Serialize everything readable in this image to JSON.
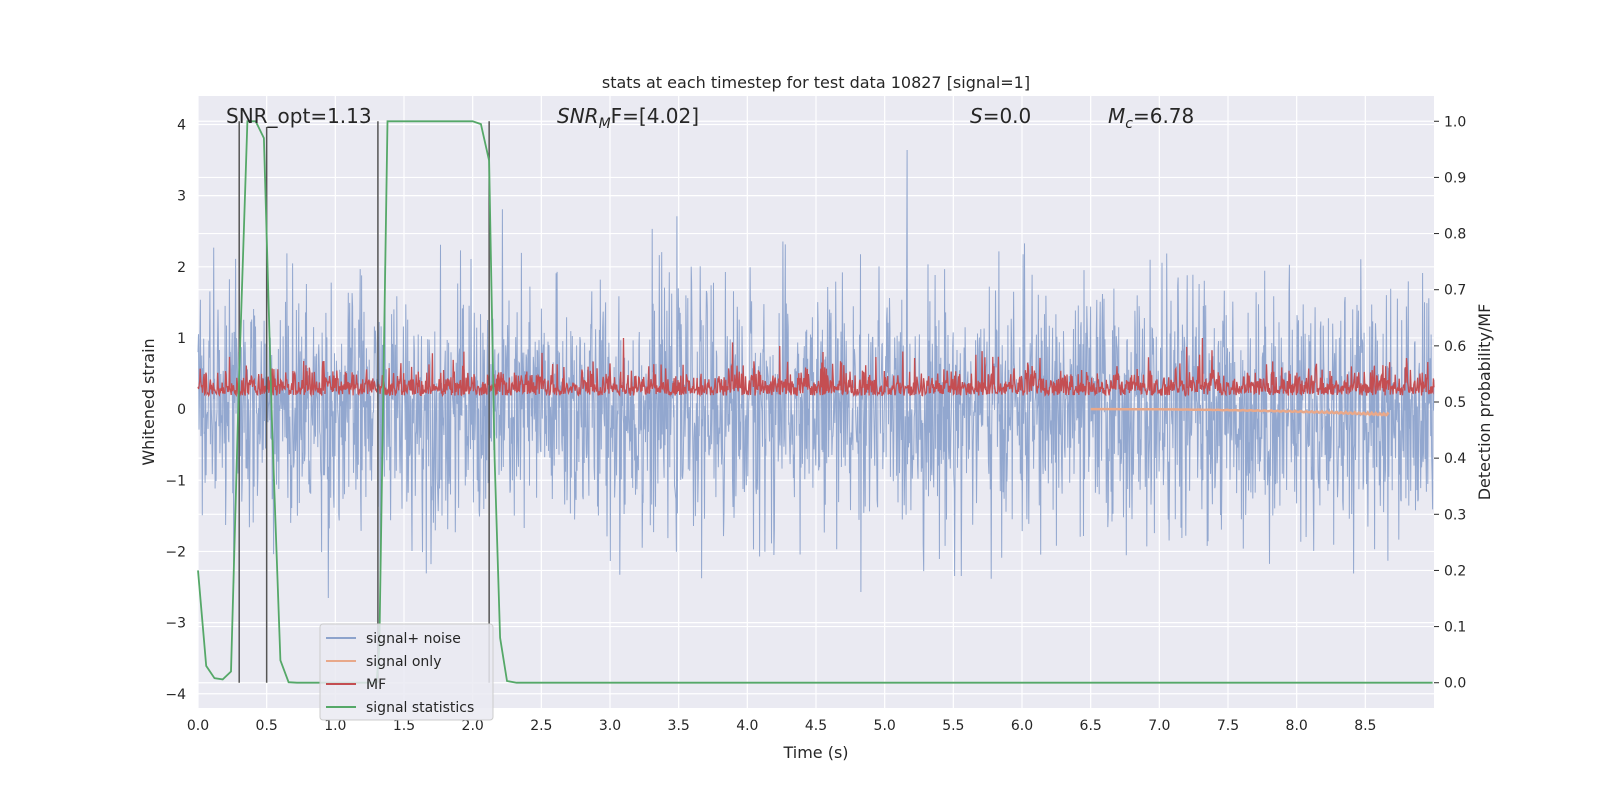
{
  "chart_data": {
    "type": "line",
    "title": "stats at each timestep for test data 10827 [signal=1]",
    "xlabel": "Time (s)",
    "ylabel_left": "Whitened strain",
    "ylabel_right": "Detection probability/MF",
    "xlim": [
      0.0,
      9.0
    ],
    "ylim_left": [
      -4.2,
      4.4
    ],
    "ylim_right": [
      -0.045,
      1.045
    ],
    "x_ticks": [
      "0.0",
      "0.5",
      "1.0",
      "1.5",
      "2.0",
      "2.5",
      "3.0",
      "3.5",
      "4.0",
      "4.5",
      "5.0",
      "5.5",
      "6.0",
      "6.5",
      "7.0",
      "7.5",
      "8.0",
      "8.5"
    ],
    "x_tick_values": [
      0.0,
      0.5,
      1.0,
      1.5,
      2.0,
      2.5,
      3.0,
      3.5,
      4.0,
      4.5,
      5.0,
      5.5,
      6.0,
      6.5,
      7.0,
      7.5,
      8.0,
      8.5
    ],
    "y_left_ticks": [
      "−4",
      "−3",
      "−2",
      "−1",
      "0",
      "1",
      "2",
      "3",
      "4"
    ],
    "y_left_tick_values": [
      -4,
      -3,
      -2,
      -1,
      0,
      1,
      2,
      3,
      4
    ],
    "y_right_ticks": [
      "0.0",
      "0.1",
      "0.2",
      "0.3",
      "0.4",
      "0.5",
      "0.6",
      "0.7",
      "0.8",
      "0.9",
      "1.0"
    ],
    "y_right_tick_values": [
      0.0,
      0.1,
      0.2,
      0.3,
      0.4,
      0.5,
      0.6,
      0.7,
      0.8,
      0.9,
      1.0
    ],
    "grid": true,
    "legend_placement": "lower-left",
    "annotations": [
      {
        "id": "snr-opt",
        "text": "SNR_opt=1.13"
      },
      {
        "id": "snr-mf",
        "text": "SNR",
        "sub": "M",
        "rest": "F=[4.02]"
      },
      {
        "id": "s-val",
        "text": "S",
        "rest": "=0.0"
      },
      {
        "id": "mc-val",
        "text": "M",
        "sub": "c",
        "rest": "=6.78"
      }
    ],
    "series": [
      {
        "name": "signal+ noise",
        "color": "#8da3cc",
        "axis": "left",
        "kind": "noise",
        "sigma": 0.85,
        "range": [
          0.0,
          9.0
        ]
      },
      {
        "name": "signal only",
        "color": "#e8a88a",
        "axis": "left",
        "kind": "chirp",
        "range": [
          6.5,
          8.67
        ],
        "min": -0.09
      },
      {
        "name": "MF",
        "color": "#c44e52",
        "axis": "left",
        "kind": "mf",
        "mean": 0.25,
        "range": [
          0.0,
          9.0
        ]
      },
      {
        "name": "signal statistics",
        "color": "#55a868",
        "axis": "right",
        "x": [
          0.0,
          0.06,
          0.12,
          0.18,
          0.24,
          0.3,
          0.36,
          0.42,
          0.48,
          0.54,
          0.6,
          0.66,
          0.72,
          0.8,
          1.0,
          1.2,
          1.3,
          1.32,
          1.38,
          1.44,
          1.6,
          1.8,
          2.0,
          2.06,
          2.12,
          2.16,
          2.2,
          2.25,
          2.32,
          2.5,
          3.0,
          4.0,
          5.0,
          6.0,
          7.0,
          8.0,
          8.99
        ],
        "y": [
          0.2,
          0.03,
          0.008,
          0.006,
          0.02,
          0.55,
          1.0,
          1.0,
          0.97,
          0.45,
          0.04,
          0.001,
          0.0,
          0.0,
          0.0,
          0.0,
          0.0,
          0.06,
          1.0,
          1.0,
          1.0,
          1.0,
          1.0,
          0.995,
          0.93,
          0.4,
          0.08,
          0.003,
          0.0,
          0.0,
          0.0,
          0.0,
          0.0,
          0.0,
          0.0,
          0.0,
          0.0
        ]
      }
    ],
    "vertical_markers": [
      {
        "x": 0.3,
        "y_top": 1.0
      },
      {
        "x": 0.5,
        "y_top": 0.99
      },
      {
        "x": 1.31,
        "y_top": 1.0
      },
      {
        "x": 2.12,
        "y_top": 1.0
      }
    ]
  }
}
